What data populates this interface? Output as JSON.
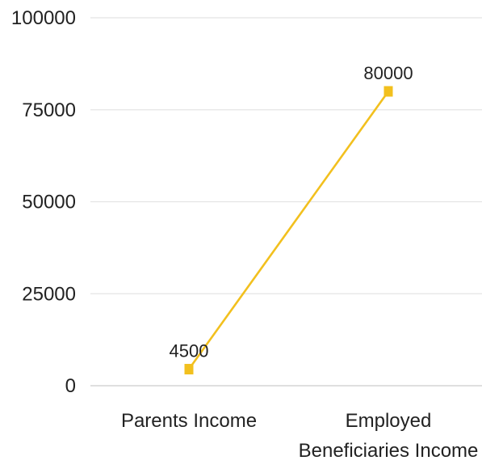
{
  "chart_data": {
    "type": "line",
    "categories": [
      "Parents Income",
      "Employed Beneficiaries Income"
    ],
    "series": [
      {
        "values": [
          4500,
          80000
        ],
        "color": "#F2C01E"
      }
    ],
    "y_ticks": [
      "100000",
      "75000",
      "50000",
      "25000",
      "0"
    ],
    "ylim": [
      0,
      100000
    ],
    "data_labels": [
      "4500",
      "80000"
    ],
    "grid": true,
    "legend": "none",
    "title": "",
    "xlabel": "",
    "ylabel": ""
  }
}
